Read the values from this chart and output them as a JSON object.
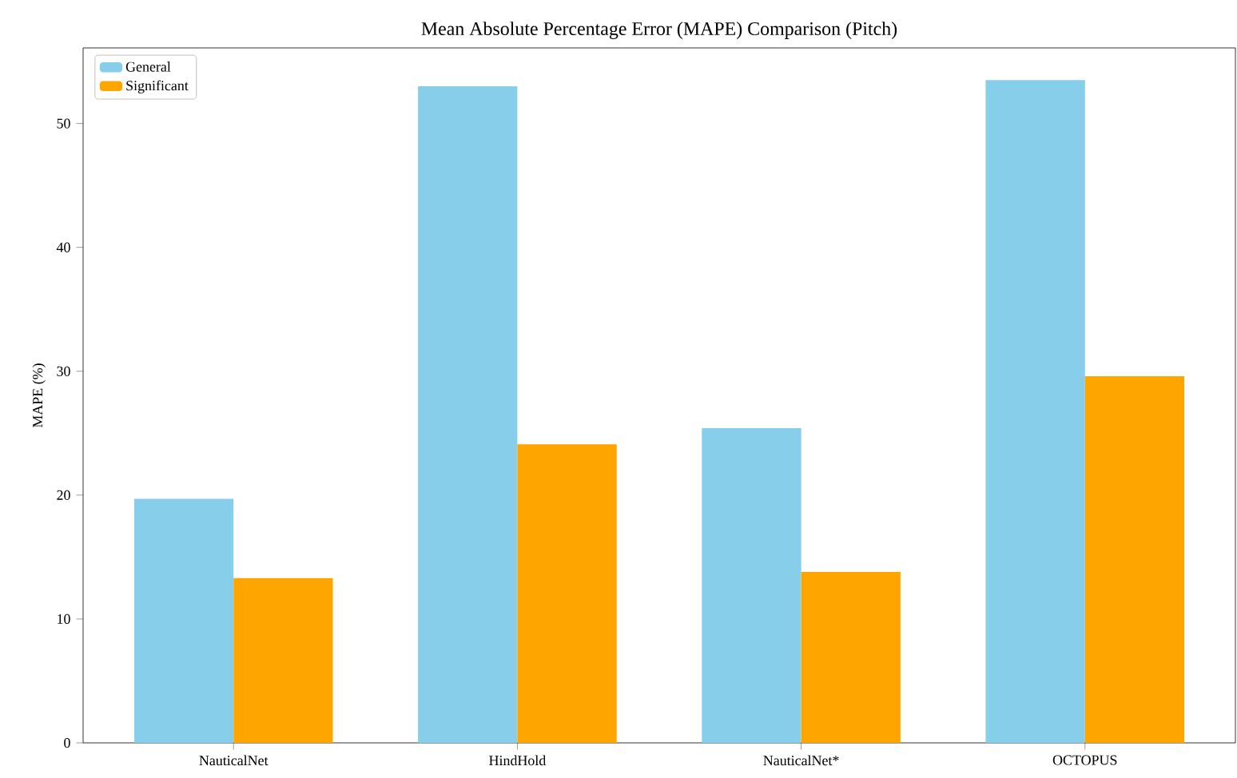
{
  "chart_data": {
    "type": "bar",
    "title": "Mean Absolute Percentage Error (MAPE) Comparison (Pitch)",
    "ylabel": "MAPE (%)",
    "categories": [
      "NauticalNet",
      "HindHold",
      "NauticalNet*",
      "OCTOPUS"
    ],
    "series": [
      {
        "name": "General",
        "color": "#87ceeb",
        "values": [
          19.7,
          53.0,
          25.4,
          53.5
        ]
      },
      {
        "name": "Significant",
        "color": "#ffa500",
        "values": [
          13.3,
          24.1,
          13.8,
          29.6
        ]
      }
    ],
    "ylim": [
      0,
      56.1
    ],
    "yticks": [
      0,
      10,
      20,
      30,
      40,
      50
    ],
    "legend": "top left"
  }
}
